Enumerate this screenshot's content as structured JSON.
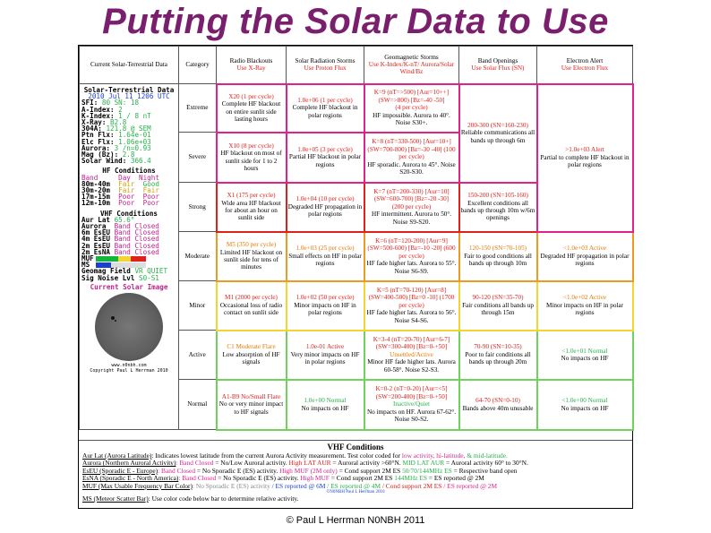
{
  "page": {
    "title": "Putting the Solar Data to Use",
    "copyright": "© Paul L Herrman N0NBH 2011"
  },
  "colors": {
    "title": "#7a1f6e",
    "red": "#e0201a",
    "orange": "#e87a00",
    "green": "#27b24a",
    "magenta": "#e0238b",
    "blue": "#1b3fd1"
  },
  "header": {
    "current": "Current Solar-Terrestrial Data",
    "category": "Category",
    "radio": {
      "title": "Radio Blackouts",
      "sub": "Use X-Ray"
    },
    "radiation": {
      "title": "Solar Radiation Storms",
      "sub": "Use Proton Flux"
    },
    "geomag": {
      "title": "Geomagnetic Storms",
      "sub": "Use K-Index/K-nT/ Aurora/Solar Wind/Bz"
    },
    "band": {
      "title": "Band Openings",
      "sub": "Use Solar Flux (SN)"
    },
    "electron": {
      "title": "Electron Alert",
      "sub": "Use Electron Flux"
    }
  },
  "rows": [
    {
      "cat": "Extreme",
      "radio": {
        "hd": "X20 (1 per cycle)",
        "tx": "Complete HF blackout on entire sunlit side lasting hours"
      },
      "rad": {
        "hd": "1.0e+06 (1 per cycle)",
        "tx": "Complete HF blackout in polar regions"
      },
      "geo": {
        "hd": "K=9 (nT=>500) [Aur=10++] (SW=>800) [Bz=-40 -50]",
        "hd2": "(4 per cycle)",
        "tx": "HF impossible. Aurora to 40°. Noise S30+."
      }
    },
    {
      "cat": "Severe",
      "radio": {
        "hd": "X10 (8 per cycle)",
        "tx": "HF blackout on most of sunlit side for 1 to 2 hours"
      },
      "rad": {
        "hd": "1.0e+05 (3 per cycle)",
        "tx": "Partial HF blackout in polar regions"
      },
      "geo": {
        "hd": "K=8 (nT=330-500) [Aur=10+] (SW=700-800) [Bz=-30 -40] (100 per cycle)",
        "tx": "HF sporadic. Aurora to 45°. Noise S20-S30."
      }
    },
    {
      "cat": "Strong",
      "radio": {
        "hd": "X1 (175 per cycle)",
        "tx": "Wide area HF blackout for about an hour on sunlit side"
      },
      "rad": {
        "hd": "1.0e+04 (10 per cycle)",
        "tx": "Degraded HF propagation in polar regions"
      },
      "geo": {
        "hd": "K=7 (nT=200-330) [Aur=10] (SW=600-700) [Bz=-20 -30]",
        "hd2": "(200 per cycle)",
        "tx": "HF intermittent. Aurora to 50°. Noise S9-S20."
      }
    },
    {
      "cat": "Moderate",
      "radio": {
        "hd": "M5 (350 per cycle)",
        "tx": "Limited HF blackout on sunlit side for tens of minutes"
      },
      "rad": {
        "hd": "1.0e+03 (25 per cycle)",
        "tx": "Small effects on HF in polar regions"
      },
      "geo": {
        "hd": "K=6 (nT=120-200) [Aur=9] (SW=500-600) [Bz=-10 -20] (600 per cycle)",
        "tx": "HF fade higher lats. Aurora to 55°. Noise S6-S9."
      }
    },
    {
      "cat": "Minor",
      "radio": {
        "hd": "M1 (2000 per cycle)",
        "tx": "Occasional loss of radio contact on sunlit side"
      },
      "rad": {
        "hd": "1.0e+02 (50 per cycle)",
        "tx": "Minor impacts on HF in polar regions"
      },
      "geo": {
        "hd": "K=5 (nT=70-120) [Aur=8] (SW=400-500) [Bz=0 -10] (1700 per cycle)",
        "tx": "HF fade higher lats. Aurora to 56°. Noise S4-S6."
      }
    },
    {
      "cat": "Active",
      "radio": {
        "hd": "C1 Moderate Flare",
        "tx": "Low absorption of HF signals"
      },
      "rad": {
        "hd": "1.0e-01 Active",
        "tx": "Very minor impacts on HF in polar regions"
      },
      "geo": {
        "hd": "K=3-4 (nT=20-70) [Aur=6-7] (SW=300-400) [Bz=0-+50]",
        "hd2": "Unsettled/Active",
        "tx": "Minor HF fade higher lats. Aurora 60-58°. Noise S2-S3."
      }
    },
    {
      "cat": "Normal",
      "radio": {
        "hd": "A1-B9 No/Small Flare",
        "tx": "No or very minor impact to HF signals"
      },
      "rad": {
        "hd": "1.0e+00 Normal",
        "tx": "No impacts on HF"
      },
      "geo": {
        "hd": "K=0-2 (nT=0-20) [Aur=<5] (SW=200-400) [Bz=0-+50]",
        "hd2": "Inactive/Quiet",
        "tx": "No impacts on HF. Aurora 67-62°. Noise S0-S2."
      }
    }
  ],
  "band": [
    {
      "hd": "200-300 (SN=160-230)",
      "tx": "Reliable communications all bands up through 6m"
    },
    {
      "hd": "150-200 (SN=105-160)",
      "tx": "Excellent conditions all bands up through 10m w/6m openings"
    },
    {
      "hd": "120-150 (SN=70-105)",
      "tx": "Fair to good conditions all bands up through 10m"
    },
    {
      "hd": "90-120 (SN=35-70)",
      "tx": "Fair conditions all bands up through 15m"
    },
    {
      "hd": "70-90 (SN=10-35)",
      "tx": "Poor to fair conditions all bands up through 20m"
    },
    {
      "hd": "64-70 (SN=0-10)",
      "tx": "Bands above 40m unusable"
    }
  ],
  "electron": [
    {
      "hd": ">1.0e+03 Alert",
      "tx": "Partial to complete HF blackout in polar regions"
    },
    {
      "hd": "<1.0e+03 Active",
      "tx": "Degraded HF propagation in polar regions"
    },
    {
      "hd": "<1.0e+02 Active",
      "tx": "Minor impacts on HF in polar regions"
    },
    {
      "hd": "<1.0e+01 Normal",
      "tx": "No impacts on HF"
    },
    {
      "hd": "<1.0e+00 Normal",
      "tx": "No impacts on HF"
    }
  ],
  "panel": {
    "title": "Solar-Terrestrial Data",
    "date": "2010 Jul 11 1206 UTC",
    "lines": [
      {
        "k": "SFI:",
        "v": "80 SN: 18"
      },
      {
        "k": "A-Index:",
        "v": "2"
      },
      {
        "k": "K-Index:",
        "v": "1 / 8 nT"
      },
      {
        "k": "X-Ray:",
        "v": "B2.8"
      },
      {
        "k": "304A:",
        "v": "121.8 @ SEM"
      },
      {
        "k": "Ptn Flx:",
        "v": "1.64e-01"
      },
      {
        "k": "Elc Flx:",
        "v": "1.06e+03"
      },
      {
        "k": "Aurora:",
        "v": "3 /n=0.93"
      },
      {
        "k": "Mag (Bz):",
        "v": "2.8"
      },
      {
        "k": "Solar Wind:",
        "v": "366.4"
      }
    ],
    "hf_title": "HF Conditions",
    "hf_head": [
      "Band",
      "Day",
      "Night"
    ],
    "hf": [
      [
        "80m-40m",
        "Fair",
        "Good"
      ],
      [
        "30m-20m",
        "Fair",
        "Fair"
      ],
      [
        "17m-15m",
        "Poor",
        "Poor"
      ],
      [
        "12m-10m",
        "Poor",
        "Poor"
      ]
    ],
    "vhf_title": "VHF Conditions",
    "vhf": [
      [
        "Aur Lat",
        "65.6°"
      ],
      [
        "Aurora",
        "Band Closed"
      ],
      [
        "6m EsEU",
        "Band Closed"
      ],
      [
        "4m EsEU",
        "Band Closed"
      ],
      [
        "2m EsEU",
        "Band Closed"
      ],
      [
        "2m EsNA",
        "Band Closed"
      ]
    ],
    "muf": "MUF",
    "ms": "MS",
    "geomag": [
      "Geomag Field",
      "VR QUIET"
    ],
    "sig": [
      "Sig Noise Lvl",
      "S0-S1"
    ],
    "img_title": "Current Solar Image",
    "site": "www.n0nbh.com",
    "copy": "Copyright Paul L Herrman 2010"
  },
  "vhf_section": {
    "title": "VHF Conditions",
    "l1a": "Aur Lat (Aurora Latitude)",
    "l1b": ": Indicates lowest latitude from the current Aurora Activity measurement. Test color coded for",
    "l1c": "low activity,",
    "l1d": "hi-latitude,",
    "l1e": "& mid-latitude.",
    "l2a": "Aurora (Northern Auroral Activity)",
    "l2b": ": Band Closed",
    "l2c": "= No/Low Auroral activity.",
    "l2d": "High LAT AUR",
    "l2e": "= Auroral activity >60°N.",
    "l2f": "MID LAT AUR",
    "l2g": "= Auroral activity 60° to 30°N.",
    "l3a": "EsEU (Sporadic E - Europe)",
    "l3b": ": Band Closed",
    "l3c": "= No Sporadic E (ES) activity.",
    "l3d": "High MUF (2M only)",
    "l3e": "= Cond support 2M ES",
    "l3f": "50/70/144MHz ES",
    "l3g": "= Respective band open",
    "l4a": "EsNA (Sporadic E - North America)",
    "l4b": ": Band Closed",
    "l4c": "= No Sporadic E (ES) activity.",
    "l4d": "High MUF",
    "l4e": "= Cond support 2M ES",
    "l4f": "144MHz ES",
    "l4g": "= ES reported @ 2M",
    "l5a": "MUF (Max Usable Frequency Bar Color)",
    "l5b": ": No Sporadic E (ES) activity",
    "l5c": "/ ES reported @ 6M",
    "l5d": "/ ES reported @ 4M",
    "l5e": "/ Cond support 2M ES",
    "l5f": "/ ES reported @ 2M",
    "credit": "©N0NBH Paul L Herrman 2010",
    "l6a": "MS (Meteor Scatter Bar)",
    "l6b": ": Use color code below bar to determine relative activity."
  }
}
